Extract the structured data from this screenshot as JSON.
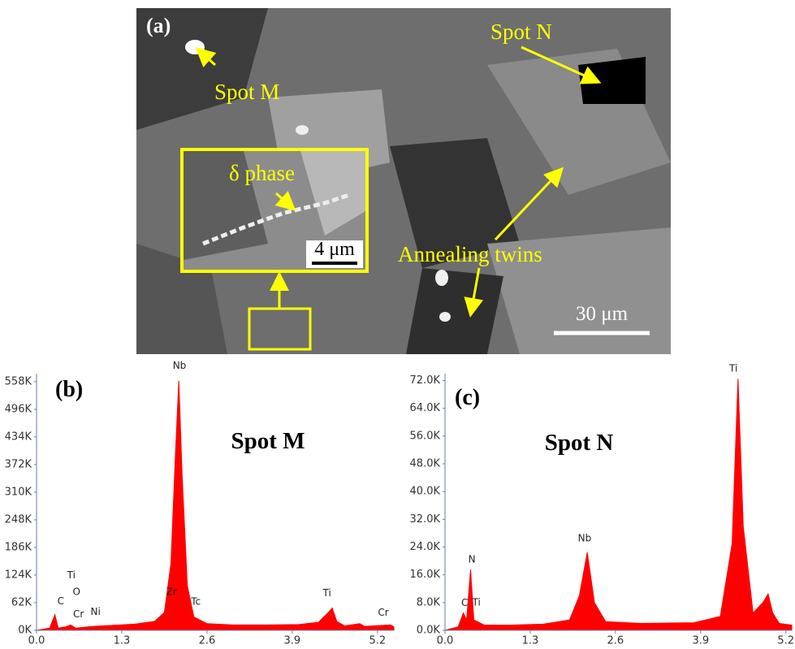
{
  "panel_a": {
    "label": "(a)",
    "spot_m": "Spot M",
    "spot_n": "Spot N",
    "delta": "δ phase",
    "inset_scale": "4 μm",
    "twins": "Annealing twins",
    "scale": "30 μm"
  },
  "chart_data": [
    {
      "type": "area",
      "label": "(b)",
      "title": "Spot M",
      "color": "#ff0000",
      "x": [
        0,
        0.2,
        0.28,
        0.33,
        0.45,
        0.52,
        0.6,
        0.8,
        1.0,
        1.5,
        1.8,
        1.95,
        2.05,
        2.12,
        2.17,
        2.22,
        2.3,
        2.4,
        2.6,
        3.0,
        3.5,
        4.0,
        4.3,
        4.45,
        4.51,
        4.58,
        4.7,
        4.93,
        5.0,
        5.4,
        5.45
      ],
      "values": [
        0,
        5000,
        35000,
        5000,
        8000,
        12000,
        5000,
        8000,
        10000,
        14000,
        20000,
        40000,
        150000,
        400000,
        560000,
        350000,
        100000,
        30000,
        15000,
        12000,
        12000,
        13000,
        18000,
        40000,
        50000,
        20000,
        10000,
        15000,
        9000,
        12000,
        8000
      ],
      "xlim": [
        0,
        5.45
      ],
      "ylim": [
        0,
        576000
      ],
      "xticks": [
        {
          "value": 0,
          "label": "0.0"
        },
        1.3,
        2.6,
        3.9,
        5.2
      ],
      "yticks": [
        {
          "value": 0,
          "label": "0K"
        },
        {
          "value": 62000,
          "label": "62K"
        },
        {
          "value": 124000,
          "label": "124K"
        },
        {
          "value": 186000,
          "label": "186K"
        },
        {
          "value": 248000,
          "label": "248K"
        },
        {
          "value": 310000,
          "label": "310K"
        },
        {
          "value": 372000,
          "label": "372K"
        },
        {
          "value": 434000,
          "label": "434K"
        },
        {
          "value": 496000,
          "label": "496K"
        },
        {
          "value": 558000,
          "label": "558K"
        }
      ],
      "peaks": [
        {
          "text": "C",
          "x": 0.37,
          "y": 58700
        },
        {
          "text": "Ti",
          "x": 0.53,
          "y": 117000
        },
        {
          "text": "O",
          "x": 0.61,
          "y": 79000
        },
        {
          "text": "Cr",
          "x": 0.64,
          "y": 29000
        },
        {
          "text": "Ni",
          "x": 0.9,
          "y": 35000
        },
        {
          "text": "Zr",
          "x": 2.06,
          "y": 79000
        },
        {
          "text": "Tc",
          "x": 2.43,
          "y": 57000
        },
        {
          "text": "Nb",
          "x": 2.18,
          "y": 587000
        },
        {
          "text": "Ti",
          "x": 4.43,
          "y": 77000
        },
        {
          "text": "Cr",
          "x": 5.29,
          "y": 33000
        }
      ]
    },
    {
      "type": "area",
      "label": "(c)",
      "title": "Spot N",
      "color": "#ff0000",
      "x": [
        0,
        0.2,
        0.28,
        0.33,
        0.39,
        0.44,
        0.6,
        1.0,
        1.5,
        1.9,
        2.05,
        2.17,
        2.28,
        2.45,
        3.0,
        3.8,
        4.2,
        4.38,
        4.47,
        4.55,
        4.7,
        4.85,
        4.93,
        5.0,
        5.1,
        5.29
      ],
      "values": [
        0,
        1000,
        5000,
        3000,
        17500,
        3000,
        1500,
        1500,
        1800,
        3000,
        10000,
        22500,
        8000,
        2500,
        2000,
        2200,
        4000,
        25000,
        72500,
        30000,
        5000,
        8000,
        10500,
        5000,
        2000,
        1500
      ],
      "xlim": [
        0,
        5.29
      ],
      "ylim": [
        0,
        74000
      ],
      "xticks": [
        {
          "value": 0,
          "label": "0.0"
        },
        1.3,
        2.6,
        3.9,
        5.2
      ],
      "yticks": [
        {
          "value": 0,
          "label": "0.0K"
        },
        {
          "value": 8000,
          "label": "8.0K"
        },
        {
          "value": 16000,
          "label": "16.0K"
        },
        {
          "value": 24000,
          "label": "24.0K"
        },
        {
          "value": 32000,
          "label": "32.0K"
        },
        {
          "value": 40000,
          "label": "40.0K"
        },
        {
          "value": 48000,
          "label": "48.0K"
        },
        {
          "value": 56000,
          "label": "56.0K"
        },
        {
          "value": 64000,
          "label": "64.0K"
        },
        {
          "value": 72000,
          "label": "72.0K"
        }
      ],
      "peaks": [
        {
          "text": "N",
          "x": 0.41,
          "y": 19600
        },
        {
          "text": "C",
          "x": 0.3,
          "y": 7000
        },
        {
          "text": "Ti",
          "x": 0.48,
          "y": 7200
        },
        {
          "text": "Nb",
          "x": 2.13,
          "y": 25600
        },
        {
          "text": "Ti",
          "x": 4.4,
          "y": 74600
        }
      ]
    }
  ]
}
